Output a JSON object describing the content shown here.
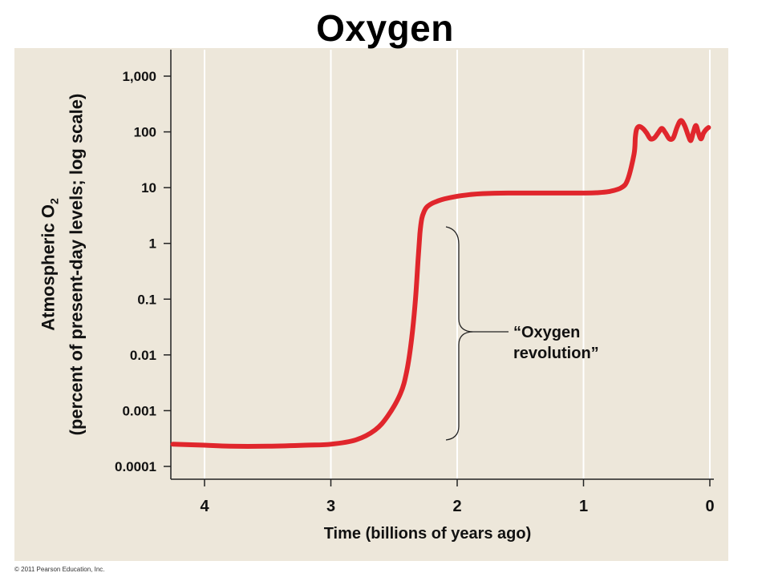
{
  "chart_data": {
    "type": "line",
    "title": "Oxygen",
    "xlabel": "Time (billions of years ago)",
    "ylabel_line1": "Atmospheric O",
    "ylabel_subscript": "2",
    "ylabel_line2": "(percent of present-day levels; log scale)",
    "x_ticks": [
      "4",
      "3",
      "2",
      "1",
      "0"
    ],
    "x_tick_values": [
      4,
      3,
      2,
      1,
      0
    ],
    "y_ticks": [
      "1,000",
      "100",
      "10",
      "1",
      "0.1",
      "0.01",
      "0.001",
      "0.0001"
    ],
    "y_tick_values": [
      1000,
      100,
      10,
      1,
      0.1,
      0.01,
      0.001,
      0.0001
    ],
    "xlim": [
      4.25,
      0
    ],
    "ylim": [
      0.0001,
      1000
    ],
    "y_scale": "log",
    "grid": "vertical lines",
    "line_color": "#e0262c",
    "series": [
      {
        "x": [
          4.25,
          4.0,
          3.8,
          3.5,
          3.2,
          3.0,
          2.8,
          2.65,
          2.55,
          2.45,
          2.4,
          2.36,
          2.33,
          2.31,
          2.295,
          2.28,
          2.26,
          2.24,
          2.2,
          2.15,
          2.1,
          2.0,
          1.9,
          1.8,
          1.6,
          1.4,
          1.2,
          1.0,
          0.9,
          0.8,
          0.7,
          0.65,
          0.6,
          0.59,
          0.58,
          0.56,
          0.53,
          0.5,
          0.47,
          0.44,
          0.41,
          0.38,
          0.35,
          0.32,
          0.29,
          0.26,
          0.23,
          0.2,
          0.17,
          0.15,
          0.13,
          0.11,
          0.09,
          0.07,
          0.05,
          0.03,
          0.01
        ],
        "y": [
          0.00025,
          0.00024,
          0.00023,
          0.00023,
          0.00024,
          0.00025,
          0.0003,
          0.00045,
          0.0008,
          0.002,
          0.005,
          0.02,
          0.1,
          0.5,
          1.5,
          2.8,
          3.8,
          4.5,
          5.2,
          5.8,
          6.3,
          7.0,
          7.5,
          7.8,
          8.0,
          8.0,
          8.0,
          8.0,
          8.1,
          8.5,
          10,
          14,
          40,
          80,
          110,
          125,
          115,
          95,
          75,
          78,
          95,
          115,
          95,
          75,
          78,
          120,
          160,
          130,
          85,
          70,
          100,
          130,
          95,
          75,
          95,
          110,
          120
        ]
      }
    ]
  },
  "annotation": {
    "line1": "“Oxygen",
    "line2": "revolution”"
  },
  "copyright": "© 2011 Pearson Education, Inc."
}
